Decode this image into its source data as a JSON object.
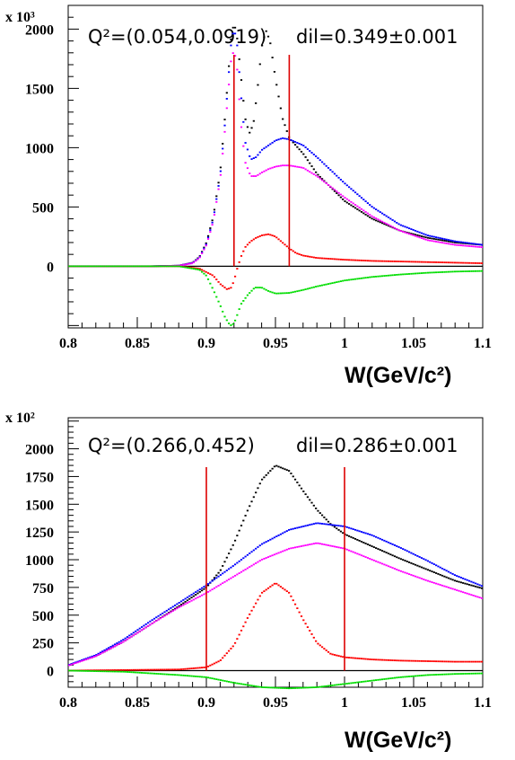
{
  "chart_data": [
    {
      "type": "scatter",
      "title": "",
      "xlabel": "W(GeV/c²)",
      "ylabel": "",
      "y_multiplier": "x 10³",
      "annotation_q2": "Q²=(0.054,0.0919)",
      "annotation_dil": "dil=0.349±0.001",
      "xlim": [
        0.8,
        1.1
      ],
      "ylim": [
        -520,
        2200
      ],
      "x_ticks": [
        "0.8",
        "0.85",
        "0.9",
        "0.95",
        "1",
        "1.05",
        "1.1"
      ],
      "y_ticks": [
        "0",
        "500",
        "1000",
        "1500",
        "2000"
      ],
      "cut_lines": [
        0.92,
        0.96
      ],
      "colors": {
        "black": "#000000",
        "blue": "#0000ff",
        "magenta": "#ff00ff",
        "red": "#ff0000",
        "green": "#00dd00",
        "cut": "#dd0000"
      },
      "series": [
        {
          "color": "black",
          "points": [
            [
              0.8,
              0
            ],
            [
              0.86,
              0
            ],
            [
              0.88,
              5
            ],
            [
              0.89,
              30
            ],
            [
              0.895,
              80
            ],
            [
              0.9,
              200
            ],
            [
              0.905,
              420
            ],
            [
              0.91,
              800
            ],
            [
              0.913,
              1200
            ],
            [
              0.916,
              1650
            ],
            [
              0.918,
              1950
            ],
            [
              0.92,
              2050
            ],
            [
              0.922,
              1950
            ],
            [
              0.925,
              1600
            ],
            [
              0.928,
              1250
            ],
            [
              0.931,
              1120
            ],
            [
              0.934,
              1200
            ],
            [
              0.937,
              1500
            ],
            [
              0.94,
              1850
            ],
            [
              0.943,
              1990
            ],
            [
              0.946,
              1900
            ],
            [
              0.95,
              1580
            ],
            [
              0.955,
              1250
            ],
            [
              0.96,
              1080
            ],
            [
              0.97,
              950
            ],
            [
              0.98,
              780
            ],
            [
              1.0,
              550
            ],
            [
              1.02,
              400
            ],
            [
              1.04,
              300
            ],
            [
              1.06,
              240
            ],
            [
              1.08,
              200
            ],
            [
              1.1,
              180
            ]
          ]
        },
        {
          "color": "blue",
          "points": [
            [
              0.8,
              0
            ],
            [
              0.86,
              0
            ],
            [
              0.88,
              5
            ],
            [
              0.89,
              28
            ],
            [
              0.895,
              75
            ],
            [
              0.9,
              190
            ],
            [
              0.905,
              400
            ],
            [
              0.91,
              770
            ],
            [
              0.913,
              1150
            ],
            [
              0.916,
              1600
            ],
            [
              0.918,
              1900
            ],
            [
              0.92,
              2000
            ],
            [
              0.922,
              1900
            ],
            [
              0.925,
              1450
            ],
            [
              0.928,
              1050
            ],
            [
              0.932,
              900
            ],
            [
              0.936,
              920
            ],
            [
              0.94,
              980
            ],
            [
              0.945,
              1020
            ],
            [
              0.95,
              1060
            ],
            [
              0.955,
              1080
            ],
            [
              0.96,
              1070
            ],
            [
              0.97,
              1020
            ],
            [
              0.98,
              920
            ],
            [
              1.0,
              700
            ],
            [
              1.02,
              500
            ],
            [
              1.04,
              350
            ],
            [
              1.06,
              260
            ],
            [
              1.08,
              210
            ],
            [
              1.1,
              180
            ]
          ]
        },
        {
          "color": "magenta",
          "points": [
            [
              0.8,
              0
            ],
            [
              0.86,
              0
            ],
            [
              0.88,
              5
            ],
            [
              0.89,
              25
            ],
            [
              0.895,
              70
            ],
            [
              0.9,
              180
            ],
            [
              0.905,
              380
            ],
            [
              0.91,
              740
            ],
            [
              0.913,
              1100
            ],
            [
              0.916,
              1500
            ],
            [
              0.918,
              1760
            ],
            [
              0.92,
              1820
            ],
            [
              0.922,
              1700
            ],
            [
              0.925,
              1200
            ],
            [
              0.928,
              880
            ],
            [
              0.932,
              760
            ],
            [
              0.936,
              760
            ],
            [
              0.94,
              790
            ],
            [
              0.945,
              820
            ],
            [
              0.95,
              840
            ],
            [
              0.955,
              850
            ],
            [
              0.96,
              850
            ],
            [
              0.97,
              830
            ],
            [
              0.98,
              760
            ],
            [
              1.0,
              580
            ],
            [
              1.02,
              420
            ],
            [
              1.04,
              300
            ],
            [
              1.06,
              220
            ],
            [
              1.08,
              180
            ],
            [
              1.1,
              160
            ]
          ]
        },
        {
          "color": "red",
          "points": [
            [
              0.8,
              0
            ],
            [
              0.88,
              0
            ],
            [
              0.895,
              -20
            ],
            [
              0.905,
              -80
            ],
            [
              0.91,
              -150
            ],
            [
              0.915,
              -195
            ],
            [
              0.918,
              -180
            ],
            [
              0.92,
              -120
            ],
            [
              0.922,
              -30
            ],
            [
              0.925,
              80
            ],
            [
              0.928,
              160
            ],
            [
              0.932,
              210
            ],
            [
              0.936,
              240
            ],
            [
              0.94,
              260
            ],
            [
              0.945,
              270
            ],
            [
              0.95,
              250
            ],
            [
              0.955,
              200
            ],
            [
              0.96,
              150
            ],
            [
              0.965,
              110
            ],
            [
              0.97,
              90
            ],
            [
              0.98,
              70
            ],
            [
              1.0,
              55
            ],
            [
              1.02,
              45
            ],
            [
              1.04,
              40
            ],
            [
              1.06,
              35
            ],
            [
              1.08,
              30
            ],
            [
              1.1,
              25
            ]
          ]
        },
        {
          "color": "green",
          "points": [
            [
              0.8,
              0
            ],
            [
              0.88,
              0
            ],
            [
              0.895,
              -30
            ],
            [
              0.9,
              -80
            ],
            [
              0.905,
              -200
            ],
            [
              0.91,
              -330
            ],
            [
              0.913,
              -420
            ],
            [
              0.916,
              -480
            ],
            [
              0.918,
              -500
            ],
            [
              0.92,
              -480
            ],
            [
              0.922,
              -420
            ],
            [
              0.925,
              -320
            ],
            [
              0.93,
              -240
            ],
            [
              0.935,
              -180
            ],
            [
              0.94,
              -180
            ],
            [
              0.945,
              -210
            ],
            [
              0.95,
              -230
            ],
            [
              0.96,
              -225
            ],
            [
              0.97,
              -200
            ],
            [
              0.98,
              -170
            ],
            [
              1.0,
              -120
            ],
            [
              1.02,
              -90
            ],
            [
              1.04,
              -70
            ],
            [
              1.06,
              -55
            ],
            [
              1.08,
              -45
            ],
            [
              1.1,
              -40
            ]
          ]
        }
      ]
    },
    {
      "type": "scatter",
      "title": "",
      "xlabel": "W(GeV/c²)",
      "ylabel": "",
      "y_multiplier": "x 10²",
      "annotation_q2": "Q²=(0.266,0.452)",
      "annotation_dil": "dil=0.286±0.001",
      "xlim": [
        0.8,
        1.1
      ],
      "ylim": [
        -150,
        2280
      ],
      "x_ticks": [
        "0.8",
        "0.85",
        "0.9",
        "0.95",
        "1",
        "1.05",
        "1.1"
      ],
      "y_ticks": [
        "0",
        "250",
        "500",
        "750",
        "1000",
        "1250",
        "1500",
        "1750",
        "2000"
      ],
      "cut_lines": [
        0.9,
        1.0
      ],
      "colors": {
        "black": "#000000",
        "blue": "#0000ff",
        "magenta": "#ff00ff",
        "red": "#ff0000",
        "green": "#00dd00",
        "cut": "#dd0000"
      },
      "series": [
        {
          "color": "black",
          "points": [
            [
              0.8,
              50
            ],
            [
              0.82,
              130
            ],
            [
              0.84,
              260
            ],
            [
              0.86,
              420
            ],
            [
              0.88,
              580
            ],
            [
              0.9,
              750
            ],
            [
              0.91,
              900
            ],
            [
              0.92,
              1150
            ],
            [
              0.93,
              1450
            ],
            [
              0.94,
              1720
            ],
            [
              0.95,
              1850
            ],
            [
              0.96,
              1800
            ],
            [
              0.97,
              1620
            ],
            [
              0.98,
              1450
            ],
            [
              0.99,
              1320
            ],
            [
              1.0,
              1230
            ],
            [
              1.02,
              1120
            ],
            [
              1.04,
              1010
            ],
            [
              1.06,
              910
            ],
            [
              1.08,
              810
            ],
            [
              1.1,
              740
            ]
          ]
        },
        {
          "color": "blue",
          "points": [
            [
              0.8,
              50
            ],
            [
              0.82,
              140
            ],
            [
              0.84,
              280
            ],
            [
              0.86,
              450
            ],
            [
              0.88,
              610
            ],
            [
              0.9,
              770
            ],
            [
              0.92,
              950
            ],
            [
              0.94,
              1140
            ],
            [
              0.96,
              1270
            ],
            [
              0.98,
              1330
            ],
            [
              1.0,
              1300
            ],
            [
              1.02,
              1220
            ],
            [
              1.04,
              1110
            ],
            [
              1.06,
              990
            ],
            [
              1.08,
              860
            ],
            [
              1.1,
              760
            ]
          ]
        },
        {
          "color": "magenta",
          "points": [
            [
              0.8,
              45
            ],
            [
              0.82,
              130
            ],
            [
              0.84,
              260
            ],
            [
              0.86,
              420
            ],
            [
              0.88,
              570
            ],
            [
              0.9,
              700
            ],
            [
              0.92,
              850
            ],
            [
              0.94,
              1000
            ],
            [
              0.96,
              1100
            ],
            [
              0.98,
              1150
            ],
            [
              1.0,
              1100
            ],
            [
              1.02,
              1000
            ],
            [
              1.04,
              900
            ],
            [
              1.06,
              810
            ],
            [
              1.08,
              730
            ],
            [
              1.1,
              650
            ]
          ]
        },
        {
          "color": "red",
          "points": [
            [
              0.8,
              0
            ],
            [
              0.88,
              10
            ],
            [
              0.9,
              30
            ],
            [
              0.91,
              90
            ],
            [
              0.92,
              230
            ],
            [
              0.93,
              480
            ],
            [
              0.94,
              700
            ],
            [
              0.95,
              790
            ],
            [
              0.96,
              700
            ],
            [
              0.97,
              460
            ],
            [
              0.98,
              250
            ],
            [
              0.99,
              150
            ],
            [
              1.0,
              120
            ],
            [
              1.02,
              100
            ],
            [
              1.04,
              90
            ],
            [
              1.06,
              85
            ],
            [
              1.08,
              80
            ],
            [
              1.1,
              80
            ]
          ]
        },
        {
          "color": "green",
          "points": [
            [
              0.8,
              0
            ],
            [
              0.84,
              -10
            ],
            [
              0.88,
              -40
            ],
            [
              0.9,
              -60
            ],
            [
              0.92,
              -110
            ],
            [
              0.94,
              -150
            ],
            [
              0.96,
              -160
            ],
            [
              0.98,
              -150
            ],
            [
              1.0,
              -120
            ],
            [
              1.02,
              -90
            ],
            [
              1.04,
              -60
            ],
            [
              1.06,
              -40
            ],
            [
              1.08,
              -30
            ],
            [
              1.1,
              -25
            ]
          ]
        }
      ]
    }
  ]
}
